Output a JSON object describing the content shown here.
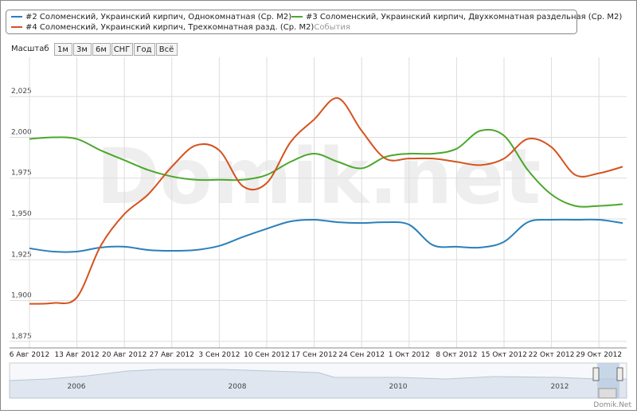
{
  "chart_data": {
    "type": "line",
    "categories": [
      "6 Авг 2012",
      null,
      "13 Авг 2012",
      null,
      "20 Авг 2012",
      null,
      "27 Авг 2012",
      null,
      "3 Сен 2012",
      null,
      "10 Сен 2012",
      null,
      "17 Сен 2012",
      null,
      "24 Сен 2012",
      null,
      "1 Окт 2012",
      null,
      "8 Окт 2012",
      null,
      "15 Окт 2012",
      null,
      "22 Окт 2012",
      null,
      "29 Окт 2012",
      null
    ],
    "series": [
      {
        "name": "#2 Соломенский, Украинский кирпич, Однокомнатная (Ср. М2)",
        "color": "#2a80b9",
        "values": [
          1932,
          1930,
          1930,
          1932.5,
          1933,
          1931,
          1930.5,
          1931,
          1933.5,
          1939,
          1944,
          1948.5,
          1949.5,
          1948,
          1947.5,
          1948,
          1946.5,
          1934,
          1933,
          1932.5,
          1936,
          1948,
          1949.5,
          1949.5,
          1949.5,
          1947.5
        ]
      },
      {
        "name": "#3 Соломенский, Украинский кирпич, Двухкомнатная раздельная (Ср. М2)",
        "color": "#4aa82c",
        "values": [
          1999,
          2000,
          1999,
          1992,
          1986,
          1980,
          1976,
          1974,
          1974,
          1974,
          1977,
          1985,
          1990,
          1985,
          1981,
          1988,
          1990,
          1990,
          1993,
          2004,
          2001,
          1980,
          1965,
          1958,
          1958,
          1959
        ]
      },
      {
        "name": "#4 Соломенский, Украинский кирпич, Трехкомнатная разд. (Ср. М2)",
        "color": "#d5531f",
        "values": [
          1898,
          1898.5,
          1902,
          1933.5,
          1953,
          1965,
          1982,
          1995,
          1992,
          1970,
          1972,
          1997,
          2011,
          2024,
          2004,
          1987,
          1987,
          1987,
          1985,
          1983,
          1987,
          1999,
          1994,
          1977,
          1978,
          1982
        ]
      }
    ],
    "legend_extra": "События",
    "ylim": [
      1871,
      2049
    ],
    "yticks": [
      {
        "value": 1875,
        "label": "1,875"
      },
      {
        "value": 1900,
        "label": "1,900"
      },
      {
        "value": 1925,
        "label": "1,925"
      },
      {
        "value": 1950,
        "label": "1,950"
      },
      {
        "value": 1975,
        "label": "1,975"
      },
      {
        "value": 2000,
        "label": "2,000"
      },
      {
        "value": 2025,
        "label": "2,025"
      }
    ],
    "grid": true
  },
  "toolbar": {
    "label": "Масштаб",
    "buttons": [
      "1м",
      "3м",
      "6м",
      "СНГ",
      "Год",
      "Всё"
    ]
  },
  "watermark": "Domik.net",
  "navigator": {
    "labels": [
      "2006",
      "2008",
      "2010",
      "2012"
    ]
  },
  "credit": "Domik.Net"
}
